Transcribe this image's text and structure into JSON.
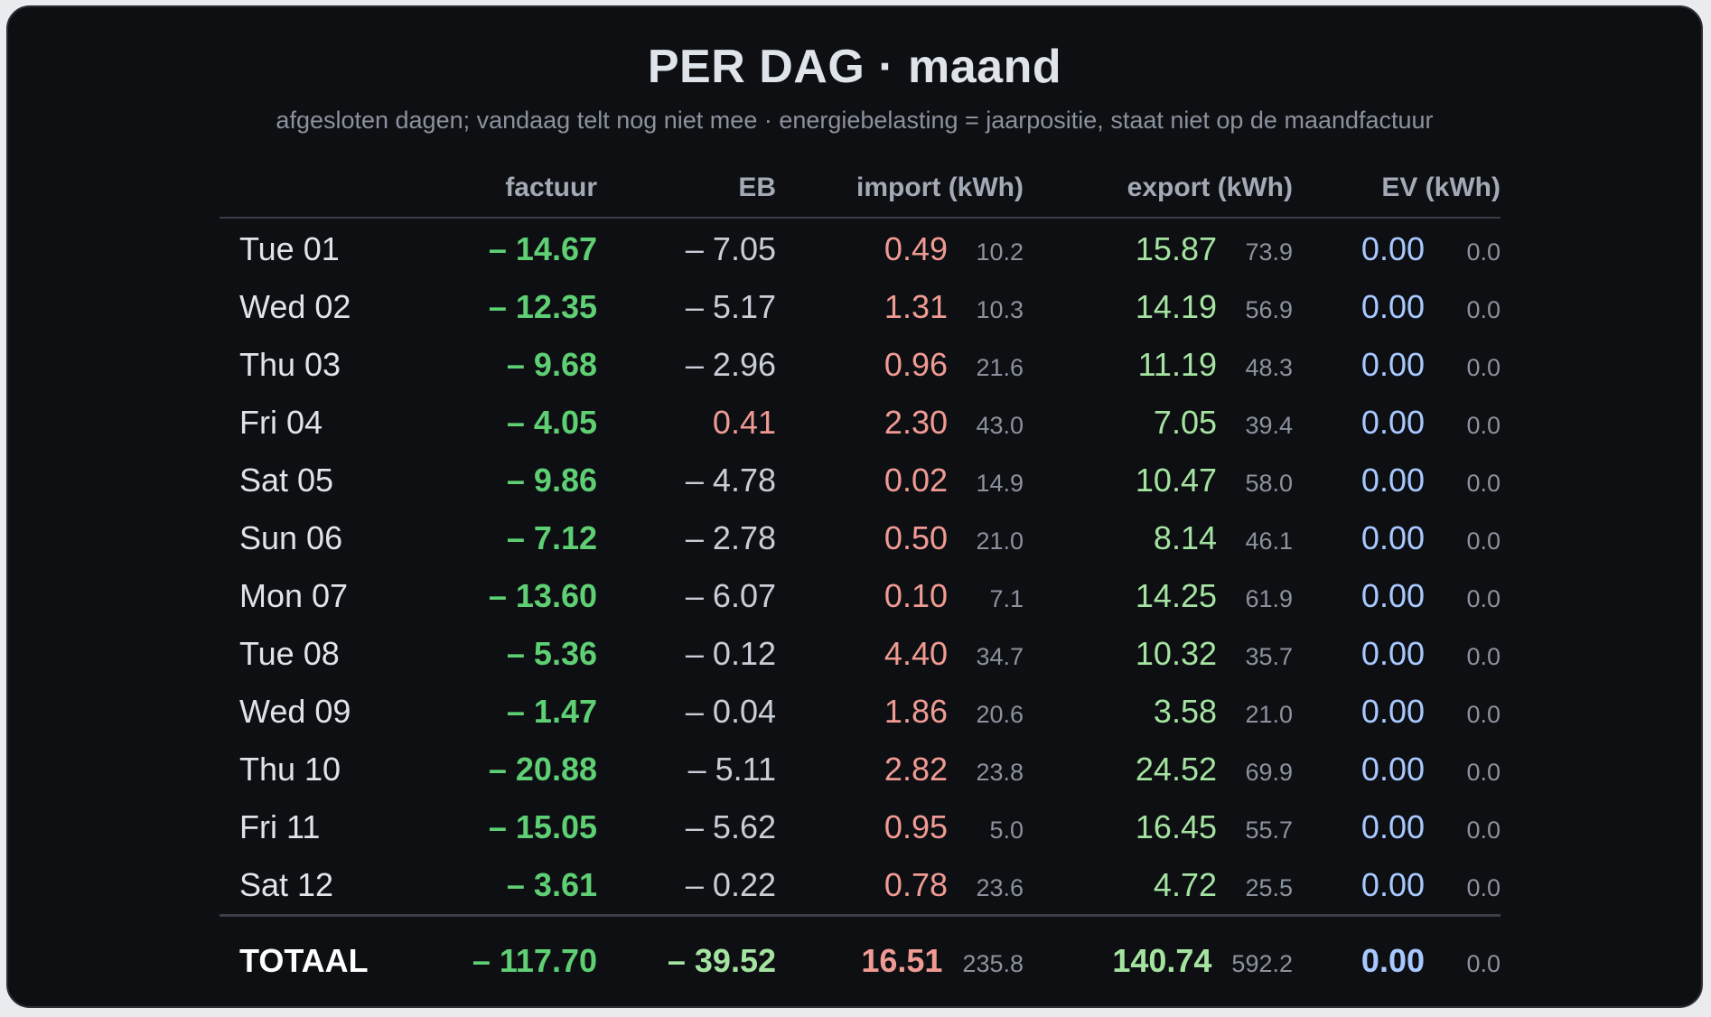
{
  "title": "PER DAG · maand",
  "subtitle": "afgesloten dagen; vandaag telt nog niet mee · energiebelasting = jaarpositie, staat niet op de maandfactuur",
  "columns": {
    "day": "",
    "factuur": "factuur",
    "eb": "EB",
    "import": "import (kWh)",
    "export": "export (kWh)",
    "ev": "EV (kWh)"
  },
  "rows": [
    {
      "day": "Tue 01",
      "factuur": "– 14.67",
      "eb": "– 7.05",
      "eb_positive": false,
      "import": "0.49",
      "import_kwh": "10.2",
      "export": "15.87",
      "export_kwh": "73.9",
      "ev": "0.00",
      "ev_kwh": "0.0"
    },
    {
      "day": "Wed 02",
      "factuur": "– 12.35",
      "eb": "– 5.17",
      "eb_positive": false,
      "import": "1.31",
      "import_kwh": "10.3",
      "export": "14.19",
      "export_kwh": "56.9",
      "ev": "0.00",
      "ev_kwh": "0.0"
    },
    {
      "day": "Thu 03",
      "factuur": "– 9.68",
      "eb": "– 2.96",
      "eb_positive": false,
      "import": "0.96",
      "import_kwh": "21.6",
      "export": "11.19",
      "export_kwh": "48.3",
      "ev": "0.00",
      "ev_kwh": "0.0"
    },
    {
      "day": "Fri 04",
      "factuur": "– 4.05",
      "eb": "0.41",
      "eb_positive": true,
      "import": "2.30",
      "import_kwh": "43.0",
      "export": "7.05",
      "export_kwh": "39.4",
      "ev": "0.00",
      "ev_kwh": "0.0"
    },
    {
      "day": "Sat 05",
      "factuur": "– 9.86",
      "eb": "– 4.78",
      "eb_positive": false,
      "import": "0.02",
      "import_kwh": "14.9",
      "export": "10.47",
      "export_kwh": "58.0",
      "ev": "0.00",
      "ev_kwh": "0.0"
    },
    {
      "day": "Sun 06",
      "factuur": "– 7.12",
      "eb": "– 2.78",
      "eb_positive": false,
      "import": "0.50",
      "import_kwh": "21.0",
      "export": "8.14",
      "export_kwh": "46.1",
      "ev": "0.00",
      "ev_kwh": "0.0"
    },
    {
      "day": "Mon 07",
      "factuur": "– 13.60",
      "eb": "– 6.07",
      "eb_positive": false,
      "import": "0.10",
      "import_kwh": "7.1",
      "export": "14.25",
      "export_kwh": "61.9",
      "ev": "0.00",
      "ev_kwh": "0.0"
    },
    {
      "day": "Tue 08",
      "factuur": "– 5.36",
      "eb": "– 0.12",
      "eb_positive": false,
      "import": "4.40",
      "import_kwh": "34.7",
      "export": "10.32",
      "export_kwh": "35.7",
      "ev": "0.00",
      "ev_kwh": "0.0"
    },
    {
      "day": "Wed 09",
      "factuur": "– 1.47",
      "eb": "– 0.04",
      "eb_positive": false,
      "import": "1.86",
      "import_kwh": "20.6",
      "export": "3.58",
      "export_kwh": "21.0",
      "ev": "0.00",
      "ev_kwh": "0.0"
    },
    {
      "day": "Thu 10",
      "factuur": "– 20.88",
      "eb": "– 5.11",
      "eb_positive": false,
      "import": "2.82",
      "import_kwh": "23.8",
      "export": "24.52",
      "export_kwh": "69.9",
      "ev": "0.00",
      "ev_kwh": "0.0"
    },
    {
      "day": "Fri 11",
      "factuur": "– 15.05",
      "eb": "– 5.62",
      "eb_positive": false,
      "import": "0.95",
      "import_kwh": "5.0",
      "export": "16.45",
      "export_kwh": "55.7",
      "ev": "0.00",
      "ev_kwh": "0.0"
    },
    {
      "day": "Sat 12",
      "factuur": "– 3.61",
      "eb": "– 0.22",
      "eb_positive": false,
      "import": "0.78",
      "import_kwh": "23.6",
      "export": "4.72",
      "export_kwh": "25.5",
      "ev": "0.00",
      "ev_kwh": "0.0"
    }
  ],
  "total": {
    "label": "TOTAAL",
    "factuur": "– 117.70",
    "eb": "– 39.52",
    "import": "16.51",
    "import_kwh": "235.8",
    "export": "140.74",
    "export_kwh": "592.2",
    "ev": "0.00",
    "ev_kwh": "0.0"
  },
  "colors": {
    "card_background": "#0d0f13",
    "factuur_green": "#5fcf74",
    "import_red": "#ef9a92",
    "export_green": "#a5e3a0",
    "ev_blue": "#a8c8ff"
  }
}
